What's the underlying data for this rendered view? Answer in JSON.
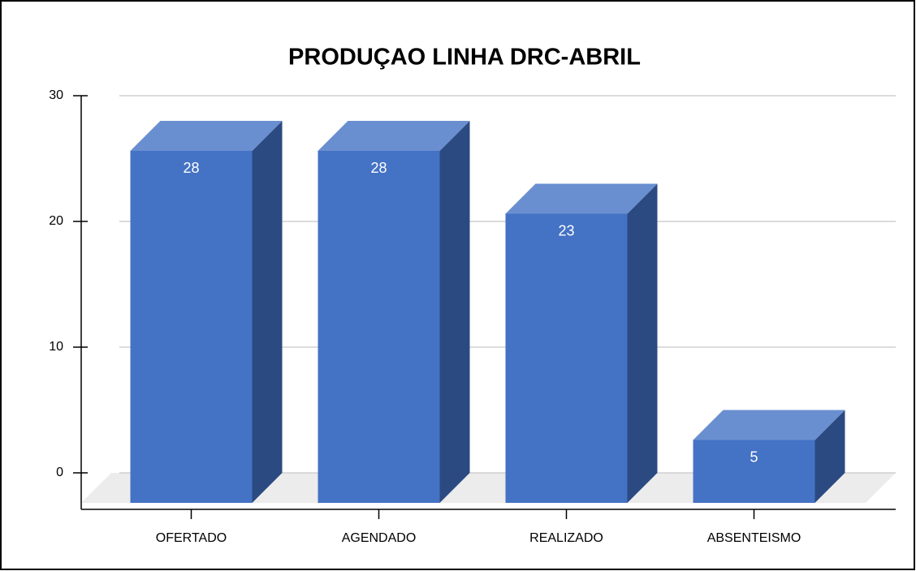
{
  "chart_data": {
    "type": "bar3d",
    "title": "PRODUÇAO LINHA DRC-ABRIL",
    "categories": [
      "OFERTADO",
      "AGENDADO",
      "REALIZADO",
      "ABSENTEISMO"
    ],
    "values": [
      28,
      28,
      23,
      5
    ],
    "color": "#4472c4",
    "ylim": [
      0,
      30
    ],
    "yticks": [
      0,
      10,
      20,
      30
    ],
    "grid": true
  }
}
